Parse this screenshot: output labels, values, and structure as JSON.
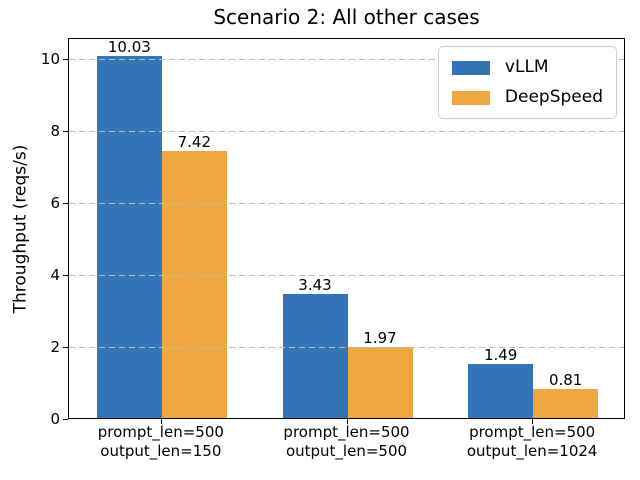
{
  "chart_data": {
    "type": "bar",
    "title": "Scenario 2: All other cases",
    "xlabel": "",
    "ylabel": "Throughput (reqs/s)",
    "categories": [
      {
        "line1": "prompt_len=500",
        "line2": "output_len=150"
      },
      {
        "line1": "prompt_len=500",
        "line2": "output_len=500"
      },
      {
        "line1": "prompt_len=500",
        "line2": "output_len=1024"
      }
    ],
    "series": [
      {
        "name": "vLLM",
        "color": "#3274b5",
        "values": [
          10.03,
          3.43,
          1.49
        ],
        "labels": [
          "10.03",
          "3.43",
          "1.49"
        ]
      },
      {
        "name": "DeepSpeed",
        "color": "#eea83f",
        "values": [
          7.42,
          1.97,
          0.81
        ],
        "labels": [
          "7.42",
          "1.97",
          "0.81"
        ]
      }
    ],
    "yticks": [
      0,
      2,
      4,
      6,
      8,
      10
    ],
    "ylim": [
      0,
      10.57
    ],
    "grid": "horizontal-dashed",
    "grid_color": "#bdbdbd",
    "legend_position": "upper right",
    "axes_frame": true
  }
}
